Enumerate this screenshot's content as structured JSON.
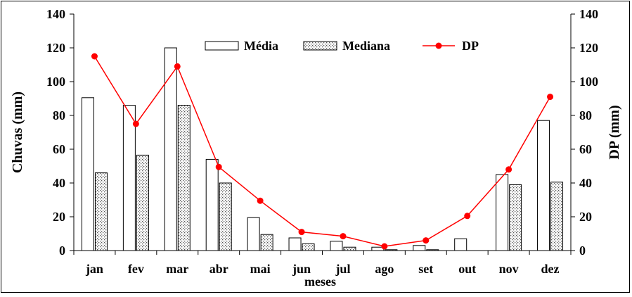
{
  "chart_data": {
    "type": "bar",
    "categories": [
      "jan",
      "fev",
      "mar",
      "abr",
      "mai",
      "jun",
      "jul",
      "ago",
      "set",
      "out",
      "nov",
      "dez"
    ],
    "series": [
      {
        "name": "Média",
        "kind": "bar",
        "style": "white",
        "values": [
          90.5,
          86,
          120,
          54,
          19.5,
          7.5,
          5.5,
          2,
          3,
          7,
          45,
          77
        ]
      },
      {
        "name": "Mediana",
        "kind": "bar",
        "style": "dotted",
        "values": [
          46,
          56.5,
          86,
          40,
          9.5,
          4,
          2,
          0.5,
          0.5,
          0,
          39,
          40.5
        ]
      },
      {
        "name": "DP",
        "kind": "line",
        "axis": "right",
        "color": "#ff0000",
        "values": [
          115,
          75,
          109,
          49.5,
          29.5,
          11,
          8.5,
          2.5,
          6,
          20.5,
          48,
          91
        ]
      }
    ],
    "xlabel": "meses",
    "ylabel": "Chuvas (mm)",
    "ylabel_right": "DP (mm)",
    "ylim": [
      0,
      140
    ],
    "ylim_right": [
      0,
      140
    ],
    "yticks": [
      "0",
      "20",
      "40",
      "60",
      "80",
      "100",
      "120",
      "140"
    ],
    "yticks_right": [
      "0",
      "20",
      "40",
      "60",
      "80",
      "100",
      "120",
      "140"
    ],
    "legend": {
      "placement": "top-center",
      "entries": [
        "Média",
        "Mediana",
        "DP"
      ]
    },
    "grid": false
  }
}
